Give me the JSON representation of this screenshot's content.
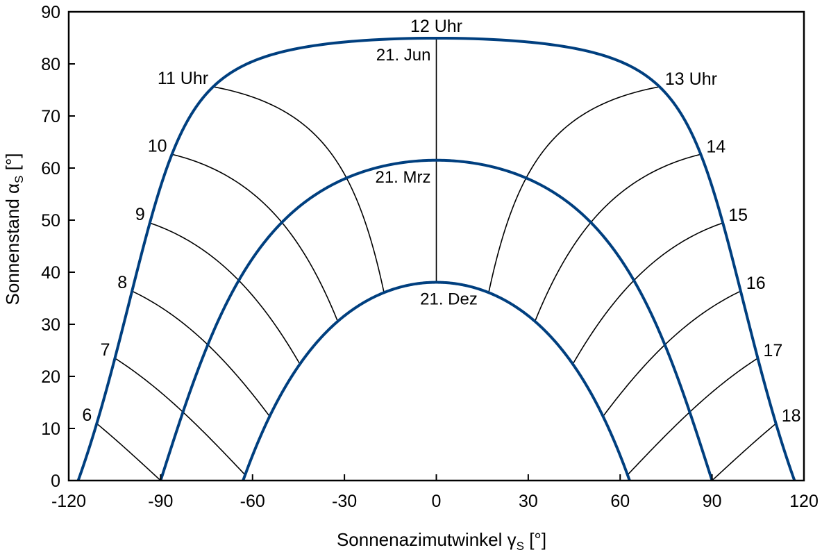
{
  "chart_data": {
    "type": "line",
    "xlabel_main": "Sonnenazimutwinkel γ",
    "xlabel_sub": "S",
    "xlabel_unit": " [°]",
    "ylabel_main": "Sonnenstand α",
    "ylabel_sub": "S",
    "ylabel_unit": " [°]",
    "xlim": [
      -120,
      120
    ],
    "ylim": [
      0,
      90
    ],
    "xticks": [
      "-120",
      "-90",
      "-60",
      "-30",
      "0",
      "30",
      "60",
      "90",
      "120"
    ],
    "yticks": [
      "0",
      "10",
      "20",
      "30",
      "40",
      "50",
      "60",
      "70",
      "80",
      "90"
    ],
    "series_color": "#003f7f",
    "series": [
      {
        "name": "21. Jun",
        "latitude": 28.5,
        "declination": 23.44
      },
      {
        "name": "21. Mrz",
        "latitude": 28.5,
        "declination": 0
      },
      {
        "name": "21. Dez",
        "latitude": 28.5,
        "declination": -23.44
      }
    ],
    "hour_labels": [
      {
        "hour": 6,
        "text": "6"
      },
      {
        "hour": 7,
        "text": "7"
      },
      {
        "hour": 8,
        "text": "8"
      },
      {
        "hour": 9,
        "text": "9"
      },
      {
        "hour": 10,
        "text": "10"
      },
      {
        "hour": 11,
        "text": "11 Uhr"
      },
      {
        "hour": 12,
        "text": "12 Uhr"
      },
      {
        "hour": 13,
        "text": "13 Uhr"
      },
      {
        "hour": 14,
        "text": "14"
      },
      {
        "hour": 15,
        "text": "15"
      },
      {
        "hour": 16,
        "text": "16"
      },
      {
        "hour": 17,
        "text": "17"
      },
      {
        "hour": 18,
        "text": "18"
      }
    ]
  }
}
